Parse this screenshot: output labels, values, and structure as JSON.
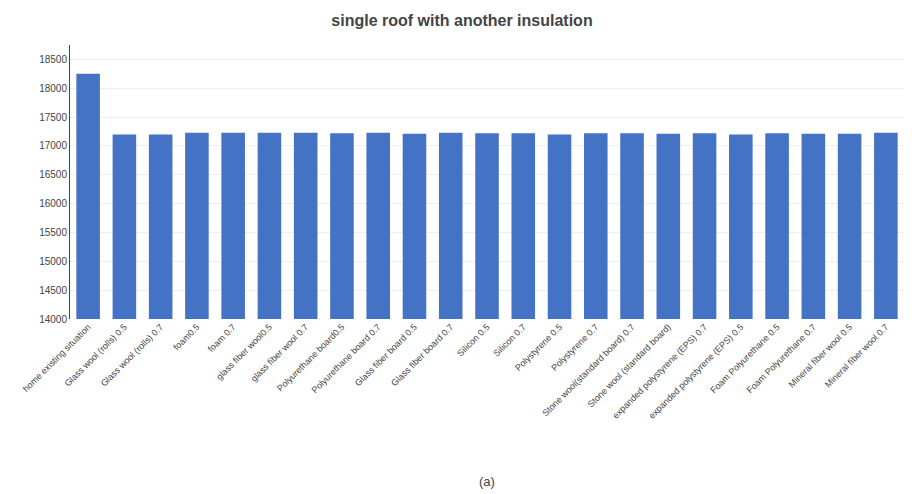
{
  "chart_data": {
    "type": "bar",
    "title": "single roof with another insulation",
    "subtitle": "(a)",
    "categories": [
      "home existing situation",
      "Glass wool (rolls) 0.5",
      "Glass wool (rolls) 0.7",
      "foam0.5",
      "foam 0.7",
      "glass fiber wool0.5",
      "glass fiber wool 0.7",
      "Polyurethane board0.5",
      "Polyurethane board 0.7",
      "Glass fiber board 0.5",
      "Glass fiber board 0.7",
      "Silicon 0.5",
      "Silicon 0.7",
      "Polystyrene 0.5",
      "Polystyrene 0.7",
      "Stone wool(standard board) 0.7",
      "Stone wool (standard board)",
      "expanded polystyrene (EPS) 0.7",
      "expanded polystyrene (EPS) 0.5",
      "Foam Polyurethane 0.5",
      "Foam Polyurethane 0.7",
      "Mineral fiber wool 0.5",
      "Mineral fiber wool 0.7"
    ],
    "values": [
      18250,
      17200,
      17200,
      17230,
      17230,
      17230,
      17230,
      17220,
      17230,
      17210,
      17230,
      17220,
      17220,
      17200,
      17220,
      17220,
      17210,
      17220,
      17200,
      17220,
      17210,
      17210,
      17230
    ],
    "color": "#4472C4",
    "ylim": [
      14000,
      18750
    ],
    "yticks": [
      14000,
      14500,
      15000,
      15500,
      16000,
      16500,
      17000,
      17500,
      18000,
      18500
    ],
    "grid": true
  }
}
